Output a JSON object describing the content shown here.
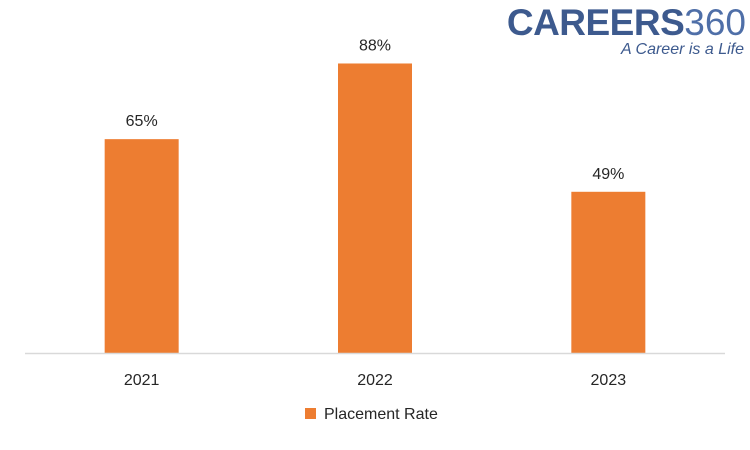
{
  "logo": {
    "brand": "CAREERS",
    "number": "360",
    "tagline": "A Career is a Life",
    "color_brand": "#3d5a8e",
    "color_number": "#4f6fa8",
    "color_tagline": "#3d5a8e"
  },
  "chart_data": {
    "type": "bar",
    "categories": [
      "2021",
      "2022",
      "2023"
    ],
    "series": [
      {
        "name": "Placement Rate",
        "values": [
          65,
          88,
          49
        ],
        "color": "#ed7d31"
      }
    ],
    "value_labels": [
      "65%",
      "88%",
      "49%"
    ],
    "ylim": [
      0,
      100
    ],
    "grid": false,
    "legend_position": "bottom"
  }
}
